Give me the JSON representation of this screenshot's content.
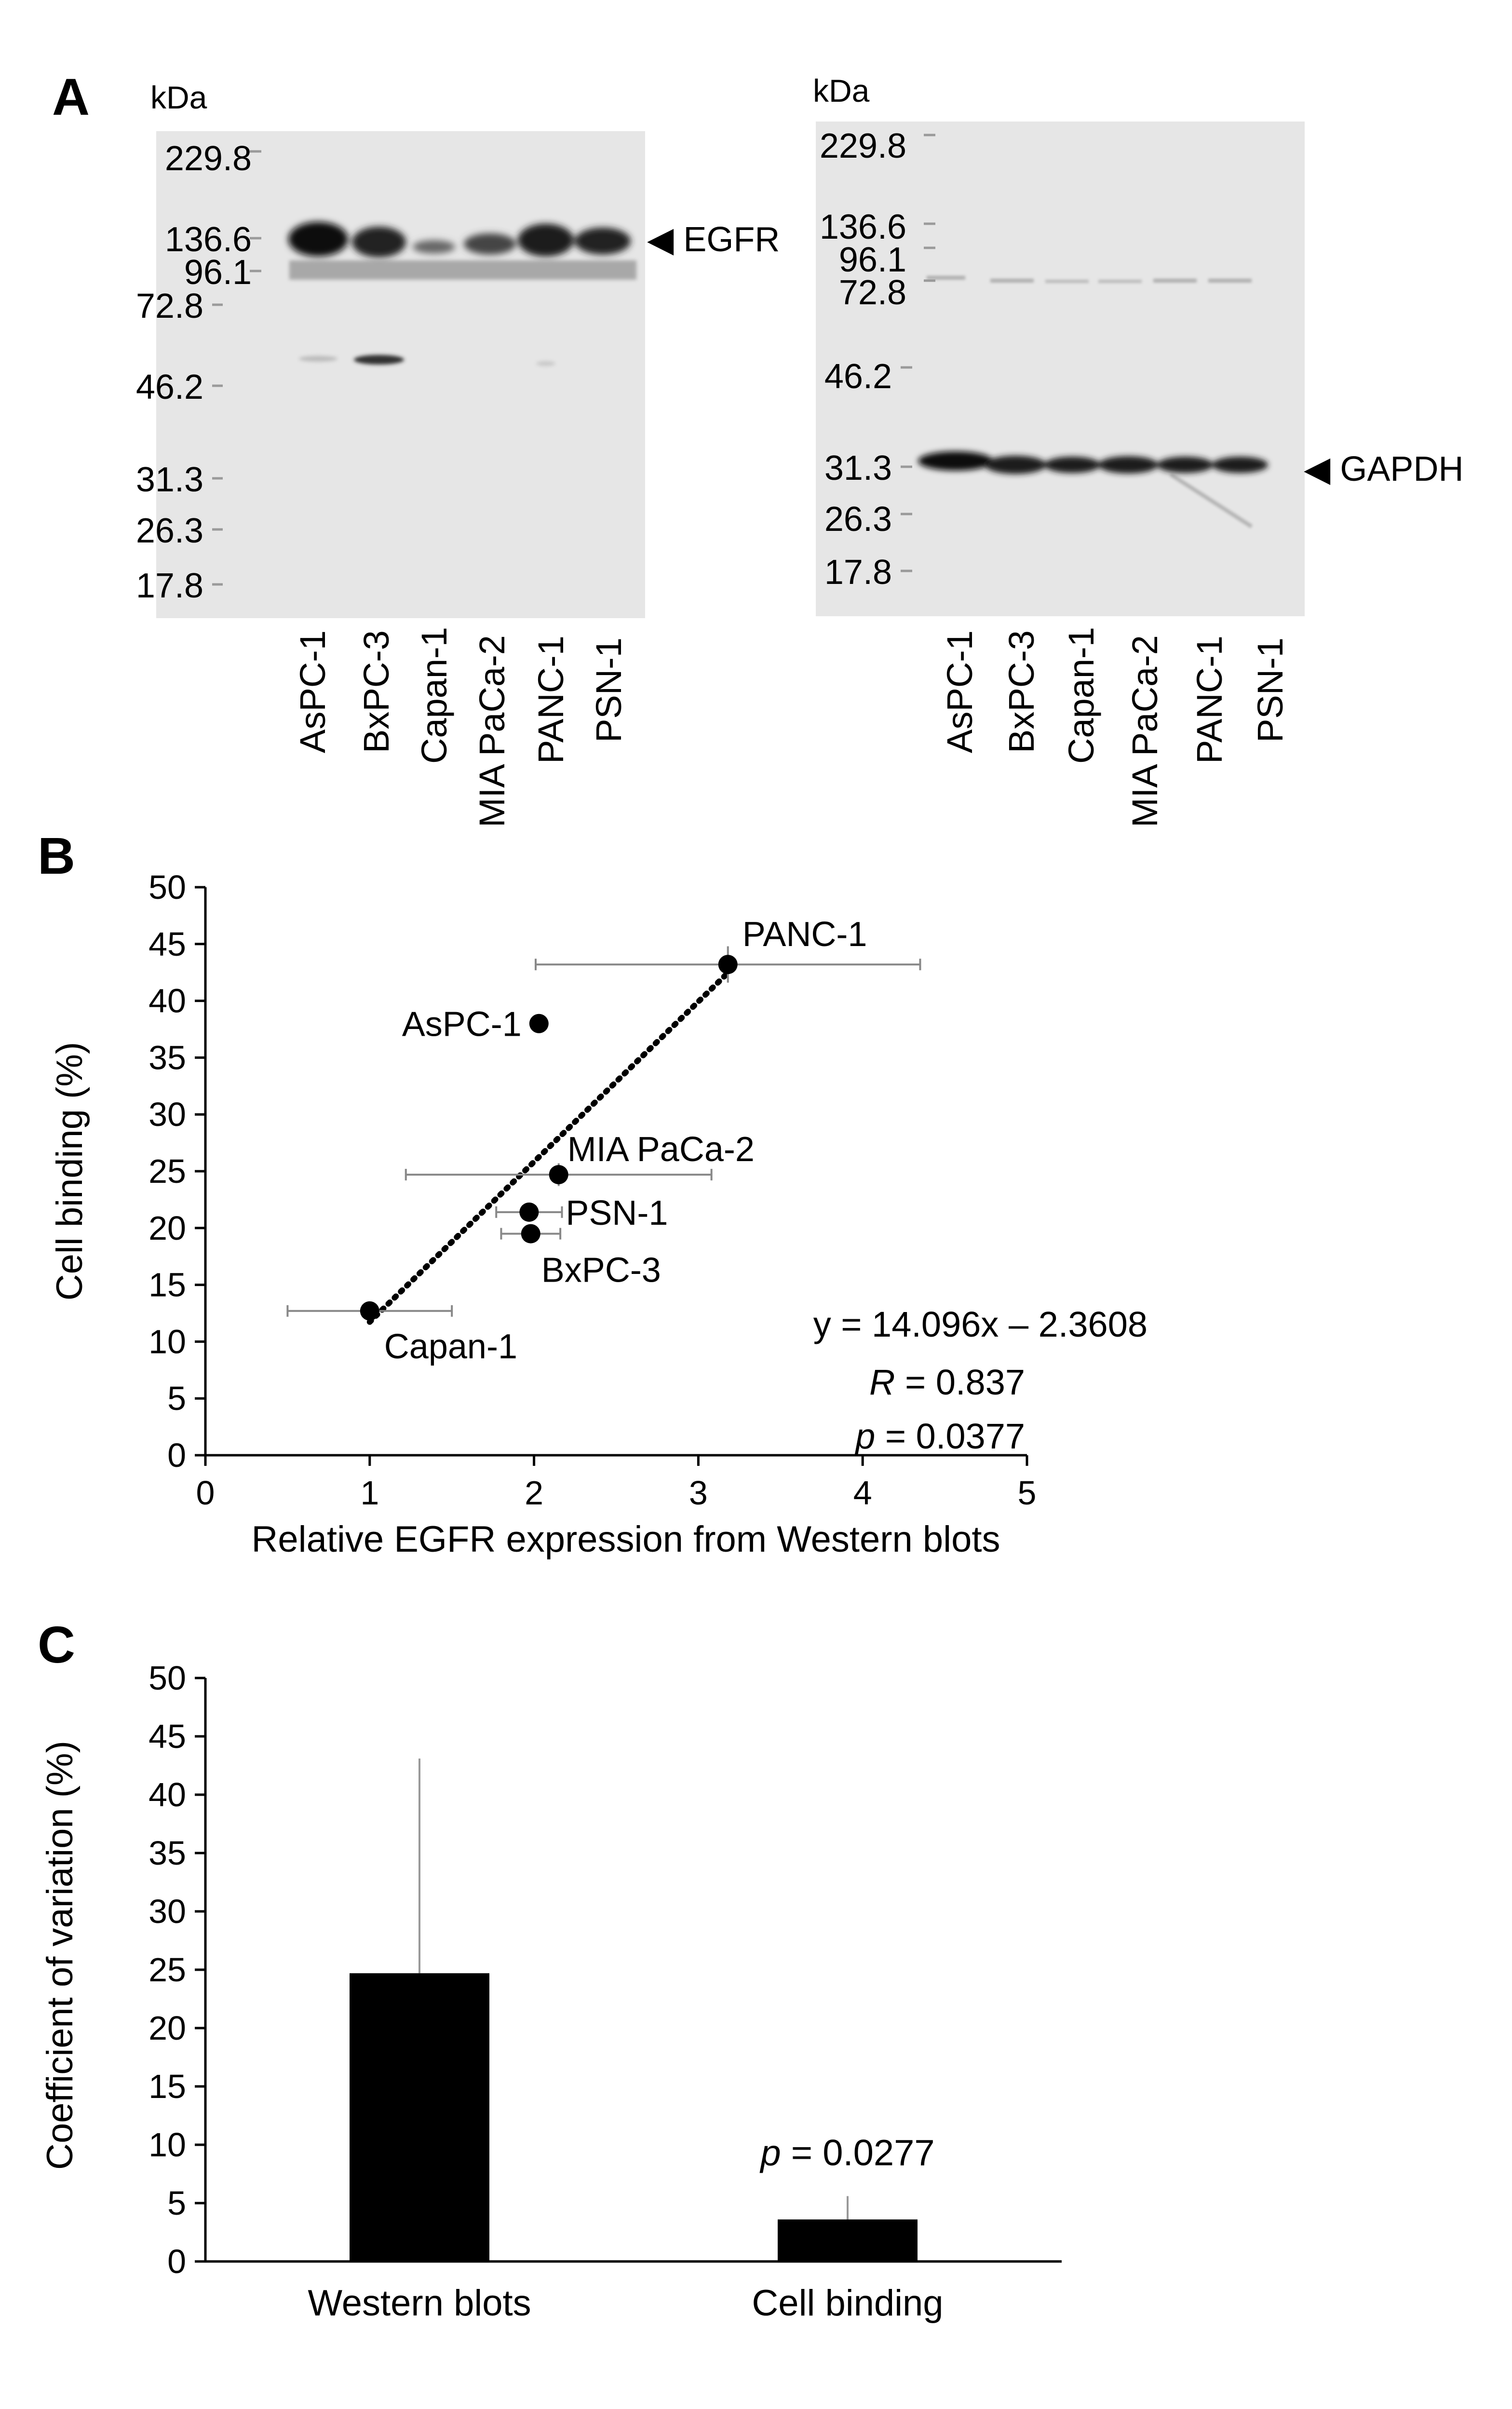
{
  "panel_a": {
    "letter": "A",
    "unit_label": "kDa",
    "left_blot": {
      "markers": [
        "229.8",
        "136.6",
        "96.1",
        "72.8",
        "46.2",
        "31.3",
        "26.3",
        "17.8"
      ],
      "band_label": "EGFR",
      "lanes": [
        "AsPC-1",
        "BxPC-3",
        "Capan-1",
        "MIA PaCa-2",
        "PANC-1",
        "PSN-1"
      ]
    },
    "right_blot": {
      "markers": [
        "229.8",
        "136.6",
        "96.1",
        "72.8",
        "46.2",
        "31.3",
        "26.3",
        "17.8"
      ],
      "band_label": "GAPDH",
      "lanes": [
        "AsPC-1",
        "BxPC-3",
        "Capan-1",
        "MIA PaCa-2",
        "PANC-1",
        "PSN-1"
      ]
    }
  },
  "panel_b_letter": "B",
  "panel_c_letter": "C",
  "chart_data": [
    {
      "type": "scatter",
      "panel": "B",
      "xlabel": "Relative EGFR expression from Western blots",
      "ylabel": "Cell binding (%)",
      "xlim": [
        0,
        5
      ],
      "ylim": [
        0,
        50
      ],
      "xticks": [
        "0",
        "1",
        "2",
        "3",
        "4",
        "5"
      ],
      "yticks": [
        "0",
        "5",
        "10",
        "15",
        "20",
        "25",
        "30",
        "35",
        "40",
        "45",
        "50"
      ],
      "points": [
        {
          "label": "PANC-1",
          "x": 3.18,
          "y": 43.2,
          "xerr": 1.17,
          "yerr": 1.6
        },
        {
          "label": "AsPC-1",
          "x": 2.03,
          "y": 38.0,
          "xerr": 0,
          "yerr": 0
        },
        {
          "label": "MIA PaCa-2",
          "x": 2.15,
          "y": 24.7,
          "xerr": 0.93,
          "yerr": 1.0
        },
        {
          "label": "PSN-1",
          "x": 1.97,
          "y": 21.4,
          "xerr": 0.2,
          "yerr": 0.6
        },
        {
          "label": "BxPC-3",
          "x": 1.98,
          "y": 19.5,
          "xerr": 0.18,
          "yerr": 0.7
        },
        {
          "label": "Capan-1",
          "x": 1.0,
          "y": 12.7,
          "xerr": 0.5,
          "yerr": 0.6
        }
      ],
      "trendline": {
        "slope": 14.096,
        "intercept": -2.3608,
        "x_range": [
          1.0,
          3.18
        ]
      },
      "equation": "y = 14.096x – 2.3608",
      "r_label": "R",
      "r_value": " = 0.837",
      "p_label": "p",
      "p_value": " = 0.0377"
    },
    {
      "type": "bar",
      "panel": "C",
      "ylabel": "Coefficient of variation (%)",
      "categories": [
        "Western blots",
        "Cell binding"
      ],
      "values": [
        24.7,
        3.6
      ],
      "errors": [
        18.4,
        2.0
      ],
      "ylim": [
        0,
        50
      ],
      "yticks": [
        "0",
        "5",
        "10",
        "15",
        "20",
        "25",
        "30",
        "35",
        "40",
        "45",
        "50"
      ],
      "p_label": "p",
      "p_value": " = 0.0277",
      "bar_color": "#000000"
    }
  ]
}
